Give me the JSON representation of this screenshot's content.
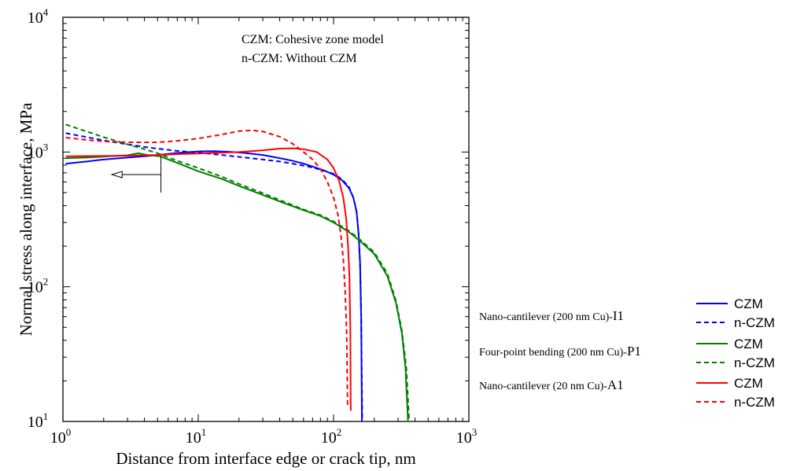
{
  "chart_data": {
    "type": "line",
    "title": "",
    "xlabel": "Distance from interface edge or crack tip, nm",
    "ylabel": "Normal stress along interface, MPa",
    "xscale": "log",
    "yscale": "log",
    "xlim": [
      1,
      1000
    ],
    "ylim": [
      10,
      10000
    ],
    "x_ticks": [
      {
        "value": 1,
        "base": "10",
        "exp": "0"
      },
      {
        "value": 10,
        "base": "10",
        "exp": "1"
      },
      {
        "value": 100,
        "base": "10",
        "exp": "2"
      },
      {
        "value": 1000,
        "base": "10",
        "exp": "3"
      }
    ],
    "y_ticks": [
      {
        "value": 10,
        "base": "10",
        "exp": "1"
      },
      {
        "value": 100,
        "base": "10",
        "exp": "2"
      },
      {
        "value": 1000,
        "base": "10",
        "exp": "3"
      },
      {
        "value": 10000,
        "base": "10",
        "exp": "4"
      }
    ],
    "annotations": [
      "CZM: Cohesive zone model",
      "n-CZM: Without CZM"
    ],
    "arrow": {
      "x": 5.3,
      "y_from": 500,
      "y_to": 930,
      "x_tip": 2.3,
      "y": 680
    },
    "legend_position": "right, outside plot",
    "legend_groups": [
      {
        "label": "Nano-cantilever (200 nm Cu)-",
        "tag": "I1"
      },
      {
        "label": "Four-point bending (200 nm Cu)-",
        "tag": "P1"
      },
      {
        "label": "Nano-cantilever (20 nm Cu)-",
        "tag": "A1"
      }
    ],
    "series": [
      {
        "name": "CZM",
        "group": "I1",
        "color": "#0000ff",
        "dash": false,
        "points": [
          [
            1.05,
            820
          ],
          [
            1.5,
            850
          ],
          [
            2,
            880
          ],
          [
            3,
            910
          ],
          [
            4,
            930
          ],
          [
            5,
            950
          ],
          [
            7,
            985
          ],
          [
            10,
            1010
          ],
          [
            13,
            1015
          ],
          [
            17,
            1005
          ],
          [
            22,
            985
          ],
          [
            30,
            950
          ],
          [
            40,
            900
          ],
          [
            50,
            860
          ],
          [
            60,
            820
          ],
          [
            70,
            780
          ],
          [
            85,
            730
          ],
          [
            100,
            680
          ],
          [
            115,
            620
          ],
          [
            130,
            540
          ],
          [
            140,
            460
          ],
          [
            148,
            360
          ],
          [
            153,
            250
          ],
          [
            157,
            150
          ],
          [
            160,
            60
          ],
          [
            162,
            10
          ]
        ]
      },
      {
        "name": "n-CZM",
        "group": "I1",
        "color": "#0000ff",
        "dash": true,
        "points": [
          [
            1.05,
            1380
          ],
          [
            1.5,
            1290
          ],
          [
            2,
            1220
          ],
          [
            3,
            1140
          ],
          [
            4,
            1090
          ],
          [
            5,
            1060
          ],
          [
            7,
            1020
          ],
          [
            10,
            990
          ],
          [
            15,
            950
          ],
          [
            20,
            920
          ],
          [
            30,
            880
          ],
          [
            40,
            850
          ],
          [
            50,
            820
          ],
          [
            65,
            780
          ],
          [
            80,
            740
          ],
          [
            100,
            690
          ],
          [
            115,
            630
          ],
          [
            130,
            550
          ],
          [
            140,
            460
          ],
          [
            148,
            360
          ],
          [
            153,
            250
          ],
          [
            157,
            150
          ],
          [
            160,
            60
          ],
          [
            163,
            10
          ]
        ]
      },
      {
        "name": "CZM",
        "group": "P1",
        "color": "#008000",
        "dash": false,
        "points": [
          [
            1.05,
            900
          ],
          [
            1.5,
            910
          ],
          [
            2,
            925
          ],
          [
            3,
            945
          ],
          [
            3.6,
            980
          ],
          [
            4.2,
            950
          ],
          [
            5.2,
            930
          ],
          [
            7,
            830
          ],
          [
            10,
            720
          ],
          [
            15,
            630
          ],
          [
            20,
            560
          ],
          [
            30,
            480
          ],
          [
            40,
            430
          ],
          [
            60,
            370
          ],
          [
            80,
            335
          ],
          [
            100,
            300
          ],
          [
            130,
            255
          ],
          [
            160,
            215
          ],
          [
            200,
            175
          ],
          [
            250,
            120
          ],
          [
            290,
            75
          ],
          [
            320,
            45
          ],
          [
            340,
            25
          ],
          [
            355,
            10
          ]
        ]
      },
      {
        "name": "n-CZM",
        "group": "P1",
        "color": "#008000",
        "dash": true,
        "points": [
          [
            1.05,
            1600
          ],
          [
            1.5,
            1420
          ],
          [
            2,
            1290
          ],
          [
            3,
            1140
          ],
          [
            4,
            1050
          ],
          [
            5,
            980
          ],
          [
            7,
            860
          ],
          [
            10,
            760
          ],
          [
            15,
            655
          ],
          [
            20,
            580
          ],
          [
            30,
            495
          ],
          [
            40,
            440
          ],
          [
            60,
            375
          ],
          [
            80,
            340
          ],
          [
            100,
            305
          ],
          [
            130,
            260
          ],
          [
            160,
            220
          ],
          [
            200,
            180
          ],
          [
            250,
            125
          ],
          [
            290,
            78
          ],
          [
            320,
            47
          ],
          [
            345,
            25
          ],
          [
            362,
            10
          ]
        ]
      },
      {
        "name": "CZM",
        "group": "A1",
        "color": "#ff0000",
        "dash": false,
        "points": [
          [
            1.05,
            930
          ],
          [
            2,
            935
          ],
          [
            3,
            940
          ],
          [
            5,
            950
          ],
          [
            7,
            965
          ],
          [
            10,
            975
          ],
          [
            15,
            990
          ],
          [
            20,
            1000
          ],
          [
            30,
            1030
          ],
          [
            40,
            1060
          ],
          [
            50,
            1065
          ],
          [
            60,
            1050
          ],
          [
            75,
            1000
          ],
          [
            90,
            880
          ],
          [
            100,
            760
          ],
          [
            110,
            610
          ],
          [
            118,
            460
          ],
          [
            124,
            320
          ],
          [
            128,
            200
          ],
          [
            131,
            120
          ],
          [
            133,
            50
          ],
          [
            134,
            12
          ]
        ]
      },
      {
        "name": "n-CZM",
        "group": "A1",
        "color": "#ff0000",
        "dash": true,
        "points": [
          [
            1.05,
            1280
          ],
          [
            1.5,
            1230
          ],
          [
            2,
            1200
          ],
          [
            3,
            1180
          ],
          [
            5,
            1180
          ],
          [
            7,
            1210
          ],
          [
            10,
            1260
          ],
          [
            15,
            1350
          ],
          [
            20,
            1430
          ],
          [
            25,
            1450
          ],
          [
            30,
            1420
          ],
          [
            40,
            1300
          ],
          [
            50,
            1150
          ],
          [
            60,
            1000
          ],
          [
            70,
            880
          ],
          [
            80,
            750
          ],
          [
            90,
            600
          ],
          [
            100,
            460
          ],
          [
            108,
            340
          ],
          [
            114,
            230
          ],
          [
            118,
            160
          ],
          [
            122,
            90
          ],
          [
            125,
            45
          ],
          [
            127,
            13
          ]
        ]
      }
    ]
  }
}
